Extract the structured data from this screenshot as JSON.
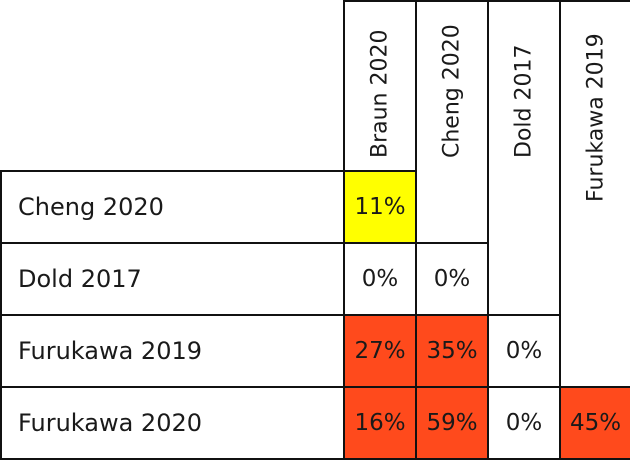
{
  "matrix": {
    "columns": [
      "Braun 2020",
      "Cheng 2020",
      "Dold 2017",
      "Furukawa 2019"
    ],
    "rows": [
      {
        "label": "Cheng 2020",
        "cells": [
          "11%"
        ]
      },
      {
        "label": "Dold 2017",
        "cells": [
          "0%",
          "0%"
        ]
      },
      {
        "label": "Furukawa 2019",
        "cells": [
          "27%",
          "35%",
          "0%"
        ]
      },
      {
        "label": "Furukawa 2020",
        "cells": [
          "16%",
          "59%",
          "0%",
          "45%"
        ]
      }
    ],
    "colors": {
      "low": "#ffffff",
      "moderate": "#ffff00",
      "high": "#ff4a1c",
      "border": "#111111"
    }
  }
}
